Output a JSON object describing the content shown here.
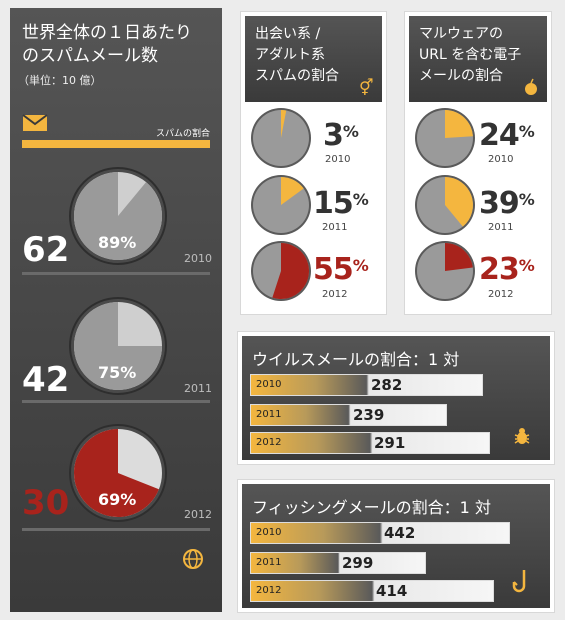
{
  "spam_panel": {
    "title_line1": "世界全体の１日あたり",
    "title_line2": "のスパムメール数",
    "subtitle": "（単位：10 億）",
    "legend_label": "スパムの割合",
    "entries": [
      {
        "year": "2010",
        "count": "62",
        "pct_label": "89%",
        "pct": 89,
        "highlight": false
      },
      {
        "year": "2011",
        "count": "42",
        "pct_label": "75%",
        "pct": 75,
        "highlight": false
      },
      {
        "year": "2012",
        "count": "30",
        "pct_label": "69%",
        "pct": 69,
        "highlight": true
      }
    ]
  },
  "adult_panel": {
    "title_line1": "出会い系 /",
    "title_line2": "アダルト系",
    "title_line3": "スパムの割合",
    "entries": [
      {
        "year": "2010",
        "pct_label": "3",
        "pct": 3,
        "highlight": false
      },
      {
        "year": "2011",
        "pct_label": "15",
        "pct": 15,
        "highlight": false
      },
      {
        "year": "2012",
        "pct_label": "55",
        "pct": 55,
        "highlight": true
      }
    ]
  },
  "malware_panel": {
    "title_line1": "マルウェアの",
    "title_line2": "URL を含む電子",
    "title_line3": "メールの割合",
    "entries": [
      {
        "year": "2010",
        "pct_label": "24",
        "pct": 24,
        "highlight": false
      },
      {
        "year": "2011",
        "pct_label": "39",
        "pct": 39,
        "highlight": false
      },
      {
        "year": "2012",
        "pct_label": "23",
        "pct": 23,
        "highlight": true
      }
    ]
  },
  "virus_panel": {
    "title": "ウイルスメールの割合：1 対",
    "rows": [
      {
        "year": "2010",
        "value": "282",
        "v": 282
      },
      {
        "year": "2011",
        "value": "239",
        "v": 239
      },
      {
        "year": "2012",
        "value": "291",
        "v": 291
      }
    ]
  },
  "phishing_panel": {
    "title": "フィッシングメールの割合：1 対",
    "rows": [
      {
        "year": "2010",
        "value": "442",
        "v": 442
      },
      {
        "year": "2011",
        "value": "299",
        "v": 299
      },
      {
        "year": "2012",
        "value": "414",
        "v": 414
      }
    ]
  },
  "percent_sign": "%",
  "colors": {
    "accent_orange": "#f4b63f",
    "highlight_red": "#a8231c",
    "pie_gray": "#9a9a9a",
    "pie_light": "#cfcfcf"
  },
  "chart_data": [
    {
      "type": "pie",
      "title": "世界全体の１日あたりのスパムメール数",
      "subtitle": "（単位：10 億）",
      "series_name": "スパムの割合",
      "categories": [
        "2010",
        "2011",
        "2012"
      ],
      "counts": [
        62,
        42,
        30
      ],
      "values": [
        89,
        75,
        69
      ]
    },
    {
      "type": "pie",
      "title": "出会い系 / アダルト系スパムの割合",
      "categories": [
        "2010",
        "2011",
        "2012"
      ],
      "values": [
        3,
        15,
        55
      ]
    },
    {
      "type": "pie",
      "title": "マルウェアの URL を含む電子メールの割合",
      "categories": [
        "2010",
        "2011",
        "2012"
      ],
      "values": [
        24,
        39,
        23
      ]
    },
    {
      "type": "bar",
      "title": "ウイルスメールの割合：1 対",
      "categories": [
        "2010",
        "2011",
        "2012"
      ],
      "values": [
        282,
        239,
        291
      ]
    },
    {
      "type": "bar",
      "title": "フィッシングメールの割合：1 対",
      "categories": [
        "2010",
        "2011",
        "2012"
      ],
      "values": [
        442,
        299,
        414
      ]
    }
  ]
}
